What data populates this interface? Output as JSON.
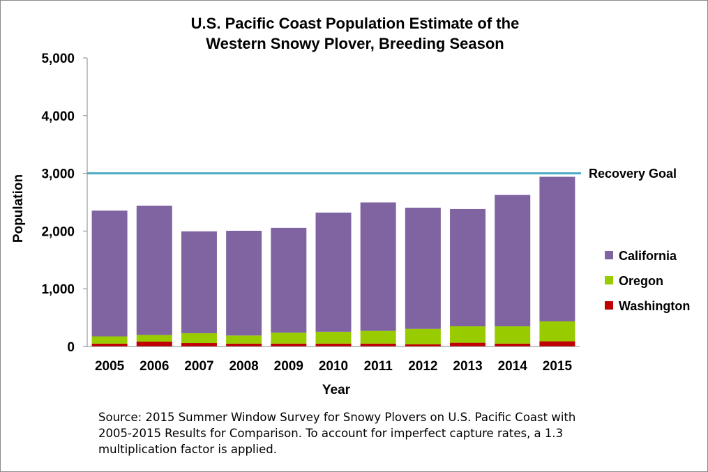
{
  "chart_data": {
    "type": "bar",
    "stacked": true,
    "title": [
      "U.S. Pacific Coast Population Estimate of the",
      "Western Snowy Plover, Breeding Season"
    ],
    "xlabel": "Year",
    "ylabel": "Population",
    "ylim": [
      0,
      5000
    ],
    "yticks": [
      0,
      1000,
      2000,
      3000,
      4000,
      5000
    ],
    "ytick_labels": [
      "0",
      "1,000",
      "2,000",
      "3,000",
      "4,000",
      "5,000"
    ],
    "categories": [
      "2005",
      "2006",
      "2007",
      "2008",
      "2009",
      "2010",
      "2011",
      "2012",
      "2013",
      "2014",
      "2015"
    ],
    "series": [
      {
        "name": "Washington",
        "color": "#c00000",
        "values": [
          50,
          85,
          60,
          50,
          50,
          50,
          50,
          40,
          65,
          50,
          90
        ]
      },
      {
        "name": "Oregon",
        "color": "#99cc00",
        "values": [
          125,
          115,
          170,
          140,
          190,
          205,
          220,
          265,
          285,
          300,
          345
        ]
      },
      {
        "name": "California",
        "color": "#8064a2",
        "values": [
          2180,
          2240,
          1765,
          1815,
          1815,
          2065,
          2225,
          2100,
          2030,
          2275,
          2505
        ]
      }
    ],
    "legend_order": [
      "California",
      "Oregon",
      "Washington"
    ],
    "legend_placement": "right",
    "reference_line": {
      "value": 3000,
      "label": "Recovery Goal",
      "color": "#4bacc6"
    },
    "grid": false
  },
  "source_note": "Source: 2015 Summer Window Survey for Snowy Plovers on U.S. Pacific Coast with 2005-2015 Results for Comparison. To account for imperfect capture rates, a 1.3 multiplication factor is applied."
}
